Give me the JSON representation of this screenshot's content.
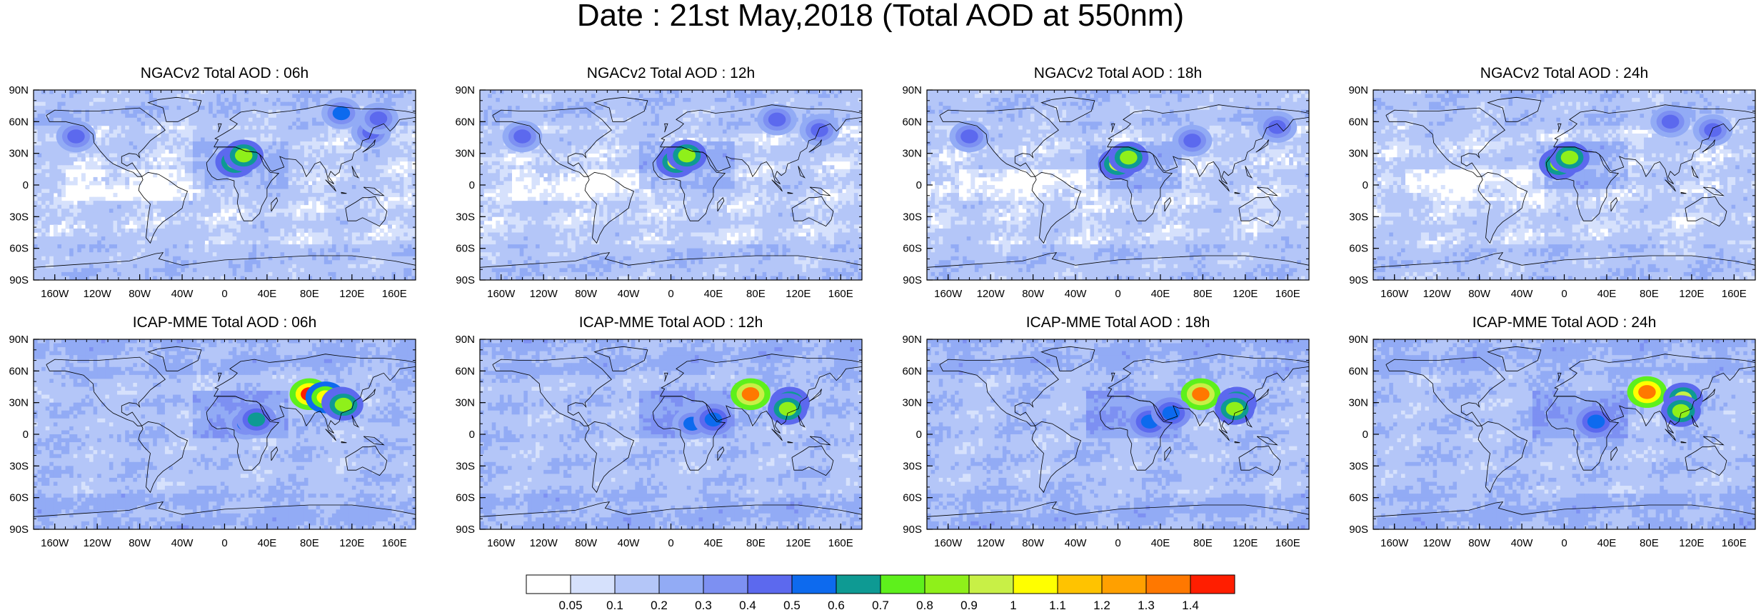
{
  "title": "Date : 21st May,2018 (Total AOD at 550nm)",
  "panels": [
    {
      "title": "NGACv2 Total AOD : 06h",
      "model": "NGACv2",
      "hour": "06h",
      "hotspots": [
        [
          10,
          22,
          0.9
        ],
        [
          18,
          28,
          0.8
        ],
        [
          -140,
          46,
          0.45
        ],
        [
          110,
          68,
          0.5
        ],
        [
          138,
          50,
          0.45
        ],
        [
          145,
          63,
          0.4
        ]
      ]
    },
    {
      "title": "NGACv2 Total AOD : 12h",
      "model": "NGACv2",
      "hour": "12h",
      "hotspots": [
        [
          5,
          22,
          0.9
        ],
        [
          15,
          28,
          0.8
        ],
        [
          -140,
          46,
          0.4
        ],
        [
          140,
          52,
          0.45
        ],
        [
          100,
          62,
          0.4
        ]
      ]
    },
    {
      "title": "NGACv2 Total AOD : 18h",
      "model": "NGACv2",
      "hour": "18h",
      "hotspots": [
        [
          0,
          20,
          0.9
        ],
        [
          10,
          26,
          0.85
        ],
        [
          -140,
          46,
          0.4
        ],
        [
          70,
          42,
          0.45
        ],
        [
          150,
          55,
          0.4
        ]
      ]
    },
    {
      "title": "NGACv2 Total AOD : 24h",
      "model": "NGACv2",
      "hour": "24h",
      "hotspots": [
        [
          -5,
          20,
          0.85
        ],
        [
          5,
          26,
          0.8
        ],
        [
          100,
          60,
          0.45
        ],
        [
          140,
          52,
          0.4
        ]
      ]
    },
    {
      "title": "ICAP-MME Total AOD : 06h",
      "model": "ICAP-MME",
      "hour": "06h",
      "hotspots": [
        [
          80,
          38,
          1.4
        ],
        [
          95,
          35,
          1.0
        ],
        [
          110,
          30,
          0.9
        ],
        [
          112,
          28,
          0.8
        ],
        [
          20,
          10,
          0.5
        ],
        [
          30,
          14,
          0.6
        ]
      ]
    },
    {
      "title": "ICAP-MME Total AOD : 12h",
      "model": "ICAP-MME",
      "hour": "12h",
      "hotspots": [
        [
          75,
          38,
          1.3
        ],
        [
          112,
          30,
          0.9
        ],
        [
          110,
          24,
          0.8
        ],
        [
          20,
          10,
          0.5
        ],
        [
          40,
          14,
          0.55
        ]
      ]
    },
    {
      "title": "ICAP-MME Total AOD : 18h",
      "model": "ICAP-MME",
      "hour": "18h",
      "hotspots": [
        [
          78,
          38,
          1.3
        ],
        [
          112,
          30,
          0.9
        ],
        [
          110,
          24,
          0.85
        ],
        [
          30,
          12,
          0.55
        ],
        [
          50,
          20,
          0.55
        ]
      ]
    },
    {
      "title": "ICAP-MME Total AOD : 24h",
      "model": "ICAP-MME",
      "hour": "24h",
      "hotspots": [
        [
          78,
          40,
          1.35
        ],
        [
          112,
          34,
          0.9
        ],
        [
          110,
          22,
          0.85
        ],
        [
          30,
          12,
          0.55
        ]
      ]
    }
  ],
  "chart_data": {
    "type": "heatmap",
    "title": "Date : 21st May,2018 (Total AOD at 550nm)",
    "variable": "Total AOD at 550nm",
    "x_ticks": [
      "160W",
      "120W",
      "80W",
      "40W",
      "0",
      "40E",
      "80E",
      "120E",
      "160E"
    ],
    "x_tick_values": [
      -160,
      -120,
      -80,
      -40,
      0,
      40,
      80,
      120,
      160
    ],
    "y_ticks": [
      "90N",
      "60N",
      "30N",
      "0",
      "30S",
      "60S",
      "90S"
    ],
    "y_tick_values": [
      90,
      60,
      30,
      0,
      -30,
      -60,
      -90
    ],
    "xlim": [
      -180,
      180
    ],
    "ylim": [
      -90,
      90
    ],
    "colorbar": {
      "labels": [
        "0.05",
        "0.1",
        "0.2",
        "0.3",
        "0.4",
        "0.5",
        "0.6",
        "0.7",
        "0.8",
        "0.9",
        "1",
        "1.1",
        "1.2",
        "1.3",
        "1.4"
      ],
      "levels": [
        0.05,
        0.1,
        0.2,
        0.3,
        0.4,
        0.5,
        0.6,
        0.7,
        0.8,
        0.9,
        1,
        1.1,
        1.2,
        1.3,
        1.4
      ],
      "colors": [
        "#ffffff",
        "#d6e1fc",
        "#b4c6f8",
        "#92abf5",
        "#7d90f2",
        "#5c69ee",
        "#0d6aee",
        "#0e9a93",
        "#5ef01c",
        "#8ff01a",
        "#c8f046",
        "#ffff00",
        "#ffc300",
        "#ffa000",
        "#ff7800",
        "#ff1e00"
      ]
    },
    "panels": [
      {
        "name": "NGACv2 Total AOD : 06h"
      },
      {
        "name": "NGACv2 Total AOD : 12h"
      },
      {
        "name": "NGACv2 Total AOD : 18h"
      },
      {
        "name": "NGACv2 Total AOD : 24h"
      },
      {
        "name": "ICAP-MME Total AOD : 06h"
      },
      {
        "name": "ICAP-MME Total AOD : 12h"
      },
      {
        "name": "ICAP-MME Total AOD : 18h"
      },
      {
        "name": "ICAP-MME Total AOD : 24h"
      }
    ]
  }
}
